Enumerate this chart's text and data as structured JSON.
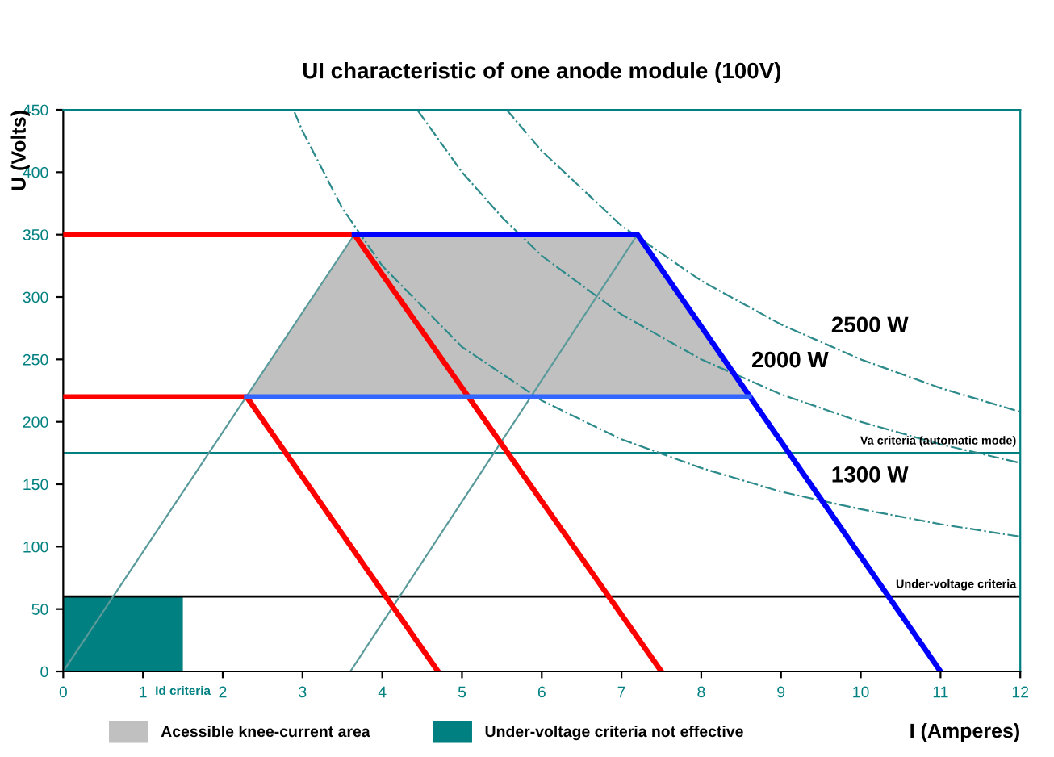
{
  "chart_data": {
    "type": "line",
    "title": "UI characteristic of one anode module (100V)",
    "xlabel": "I (Amperes)",
    "ylabel": "U (Volts)",
    "xlim": [
      0,
      12
    ],
    "ylim": [
      0,
      450
    ],
    "xticks": [
      0,
      1,
      2,
      3,
      4,
      5,
      6,
      7,
      8,
      9,
      10,
      11,
      12
    ],
    "yticks": [
      0,
      50,
      100,
      150,
      200,
      250,
      300,
      350,
      400,
      450
    ],
    "grid": false,
    "legend": "bottom",
    "marker": "none",
    "series": [
      {
        "name": "Acessible knee-current area",
        "type": "area",
        "color": "#c0c0c0",
        "x": [
          2.3,
          3.65,
          7.2,
          8.6
        ],
        "values": [
          220,
          350,
          350,
          220
        ]
      },
      {
        "name": "Under-voltage criteria not effective",
        "type": "area",
        "color": "#008080",
        "x": [
          0,
          0,
          1.5,
          1.5
        ],
        "values": [
          0,
          60,
          60,
          0
        ]
      },
      {
        "color": "#5a9a9a",
        "x": [
          0,
          3.65
        ],
        "values": [
          0,
          350
        ]
      },
      {
        "color": "#5a9a9a",
        "x": [
          3.6,
          7.2
        ],
        "values": [
          0,
          350
        ]
      },
      {
        "color": "#2e8b8b",
        "line_style": "dashdot",
        "x": [
          2.9,
          3,
          3.5,
          4,
          5,
          6,
          7,
          8,
          9,
          10,
          11,
          12
        ],
        "values": [
          448,
          433,
          371,
          325,
          260,
          217,
          186,
          163,
          144,
          130,
          118,
          108
        ]
      },
      {
        "color": "#2e8b8b",
        "line_style": "dashdot",
        "x": [
          4.45,
          5,
          5.5,
          6,
          7,
          8,
          9,
          10,
          11,
          12
        ],
        "values": [
          449,
          400,
          364,
          333,
          286,
          250,
          222,
          200,
          182,
          167
        ]
      },
      {
        "color": "#2e8b8b",
        "line_style": "dashdot",
        "x": [
          5.56,
          6,
          7,
          8,
          9,
          10,
          11,
          12
        ],
        "values": [
          450,
          417,
          357,
          313,
          278,
          250,
          227,
          208
        ]
      },
      {
        "color": "#ff0000",
        "x": [
          0,
          2.3,
          4.7
        ],
        "values": [
          220,
          220,
          0
        ]
      },
      {
        "color": "#ff0000",
        "x": [
          0,
          3.65,
          7.5
        ],
        "values": [
          350,
          350,
          0
        ]
      },
      {
        "color": "#0000ff",
        "x": [
          3.65,
          7.2,
          11
        ],
        "values": [
          350,
          350,
          0
        ]
      },
      {
        "color": "#3366ff",
        "x": [
          2.3,
          4,
          6,
          8.6
        ],
        "values": [
          220,
          220,
          220,
          220
        ]
      }
    ],
    "ref_lines": [
      {
        "axis": "y",
        "value": 175,
        "label": "Va criteria (automatic mode)",
        "color": "#008080"
      },
      {
        "axis": "y",
        "value": 60,
        "label": "Under-voltage criteria",
        "color": "#000000"
      }
    ],
    "annotations": [
      {
        "text": "2500 W",
        "x": 10,
        "y": 250
      },
      {
        "text": "2000 W",
        "x": 9,
        "y": 222
      },
      {
        "text": "1300 W",
        "x": 10,
        "y": 130
      },
      {
        "text": "Id criteria",
        "x": 1.5,
        "y": 0
      }
    ]
  }
}
